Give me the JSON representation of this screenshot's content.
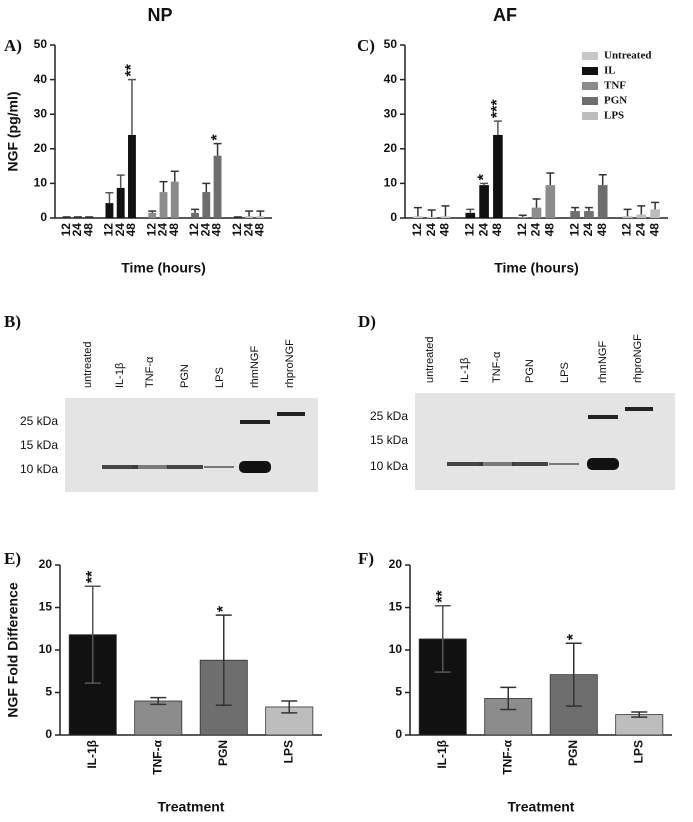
{
  "chart_data": [
    {
      "type": "bar",
      "panel": "A)",
      "title": "NP",
      "ylabel": "NGF (pg/ml)",
      "xlabel": "Time (hours)",
      "categories": [
        "12",
        "24",
        "48",
        "12",
        "24",
        "48",
        "12",
        "24",
        "48",
        "12",
        "24",
        "48",
        "12",
        "24",
        "48"
      ],
      "ylim": [
        0,
        50
      ],
      "yticks": [
        0,
        10,
        20,
        30,
        40,
        50
      ],
      "error_direction": "up",
      "legend": false,
      "series": [
        {
          "name": "Untreated",
          "color": "#c8c8c8",
          "values": [
            0,
            0,
            0,
            null,
            null,
            null,
            null,
            null,
            null,
            null,
            null,
            null,
            null,
            null,
            null
          ],
          "errors": [
            0.3,
            0.3,
            0.3,
            null,
            null,
            null,
            null,
            null,
            null,
            null,
            null,
            null,
            null,
            null,
            null
          ]
        },
        {
          "name": "IL",
          "color": "#111111",
          "values": [
            null,
            null,
            null,
            4.3,
            8.7,
            24,
            null,
            null,
            null,
            null,
            null,
            null,
            null,
            null,
            null
          ],
          "errors": [
            null,
            null,
            null,
            3,
            3.7,
            16,
            null,
            null,
            null,
            null,
            null,
            null,
            null,
            null,
            null
          ],
          "annotations": [
            null,
            null,
            null,
            null,
            null,
            "**",
            null,
            null,
            null,
            null,
            null,
            null,
            null,
            null,
            null
          ]
        },
        {
          "name": "TNF",
          "color": "#8c8c8c",
          "values": [
            null,
            null,
            null,
            null,
            null,
            null,
            1.5,
            7.5,
            10.5,
            null,
            null,
            null,
            null,
            null,
            null
          ],
          "errors": [
            null,
            null,
            null,
            null,
            null,
            null,
            0.5,
            3,
            3,
            null,
            null,
            null,
            null,
            null,
            null
          ]
        },
        {
          "name": "PGN",
          "color": "#6e6e6e",
          "values": [
            null,
            null,
            null,
            null,
            null,
            null,
            null,
            null,
            null,
            1.5,
            7.5,
            18,
            null,
            null,
            null
          ],
          "errors": [
            null,
            null,
            null,
            null,
            null,
            null,
            null,
            null,
            null,
            1,
            2.5,
            3.5,
            null,
            null,
            null
          ],
          "annotations": [
            null,
            null,
            null,
            null,
            null,
            null,
            null,
            null,
            null,
            null,
            null,
            "*",
            null,
            null,
            null
          ]
        },
        {
          "name": "LPS",
          "color": "#bdbdbd",
          "values": [
            null,
            null,
            null,
            null,
            null,
            null,
            null,
            null,
            null,
            null,
            null,
            null,
            0,
            0.5,
            0.5
          ],
          "errors": [
            null,
            null,
            null,
            null,
            null,
            null,
            null,
            null,
            null,
            null,
            null,
            null,
            0.3,
            1.5,
            1.5
          ]
        }
      ]
    },
    {
      "type": "bar",
      "panel": "C)",
      "title": "AF",
      "xlabel": "Time (hours)",
      "categories": [
        "12",
        "24",
        "48",
        "12",
        "24",
        "48",
        "12",
        "24",
        "48",
        "12",
        "24",
        "48",
        "12",
        "24",
        "48"
      ],
      "ylim": [
        0,
        50
      ],
      "yticks": [
        0,
        10,
        20,
        30,
        40,
        50
      ],
      "error_direction": "up",
      "legend": "upper right",
      "series": [
        {
          "name": "Untreated",
          "color": "#c8c8c8",
          "values": [
            0.5,
            0.3,
            0.5,
            null,
            null,
            null,
            null,
            null,
            null,
            null,
            null,
            null,
            null,
            null,
            null
          ],
          "errors": [
            2.5,
            2,
            3,
            null,
            null,
            null,
            null,
            null,
            null,
            null,
            null,
            null,
            null,
            null,
            null
          ]
        },
        {
          "name": "IL",
          "color": "#111111",
          "values": [
            null,
            null,
            null,
            1.5,
            9.5,
            24,
            null,
            null,
            null,
            null,
            null,
            null,
            null,
            null,
            null
          ],
          "errors": [
            null,
            null,
            null,
            1,
            0.5,
            4,
            null,
            null,
            null,
            null,
            null,
            null,
            null,
            null,
            null
          ],
          "annotations": [
            null,
            null,
            null,
            null,
            "*",
            "***",
            null,
            null,
            null,
            null,
            null,
            null,
            null,
            null,
            null
          ]
        },
        {
          "name": "TNF",
          "color": "#8c8c8c",
          "values": [
            null,
            null,
            null,
            null,
            null,
            null,
            0.3,
            3,
            9.5,
            null,
            null,
            null,
            null,
            null,
            null
          ],
          "errors": [
            null,
            null,
            null,
            null,
            null,
            null,
            0.5,
            2.5,
            3.5,
            null,
            null,
            null,
            null,
            null,
            null
          ]
        },
        {
          "name": "PGN",
          "color": "#6e6e6e",
          "values": [
            null,
            null,
            null,
            null,
            null,
            null,
            null,
            null,
            null,
            2,
            2,
            9.5,
            null,
            null,
            null
          ],
          "errors": [
            null,
            null,
            null,
            null,
            null,
            null,
            null,
            null,
            null,
            1,
            1,
            3,
            null,
            null,
            null
          ]
        },
        {
          "name": "LPS",
          "color": "#bdbdbd",
          "values": [
            null,
            null,
            null,
            null,
            null,
            null,
            null,
            null,
            null,
            null,
            null,
            null,
            0.5,
            1,
            2.5
          ],
          "errors": [
            null,
            null,
            null,
            null,
            null,
            null,
            null,
            null,
            null,
            null,
            null,
            null,
            2,
            2.5,
            2
          ]
        }
      ]
    },
    {
      "type": "bar",
      "panel": "E)",
      "ylabel": "NGF Fold Difference",
      "xlabel": "Treatment",
      "categories": [
        "IL-1β",
        "TNF-α",
        "PGN",
        "LPS"
      ],
      "values": [
        11.8,
        4.0,
        8.8,
        3.3
      ],
      "errors": [
        5.7,
        0.4,
        5.3,
        0.7
      ],
      "annotations": [
        "**",
        null,
        "*",
        null
      ],
      "colors": [
        "#111111",
        "#8c8c8c",
        "#6e6e6e",
        "#bdbdbd"
      ],
      "ylim": [
        0,
        20
      ],
      "yticks": [
        0,
        5,
        10,
        15,
        20
      ],
      "error_direction": "both"
    },
    {
      "type": "bar",
      "panel": "F)",
      "xlabel": "Treatment",
      "categories": [
        "IL-1β",
        "TNF-α",
        "PGN",
        "LPS"
      ],
      "values": [
        11.3,
        4.3,
        7.1,
        2.4
      ],
      "errors": [
        3.9,
        1.3,
        3.7,
        0.3
      ],
      "annotations": [
        "**",
        null,
        "*",
        null
      ],
      "colors": [
        "#111111",
        "#8c8c8c",
        "#6e6e6e",
        "#bdbdbd"
      ],
      "ylim": [
        0,
        20
      ],
      "yticks": [
        0,
        5,
        10,
        15,
        20
      ],
      "error_direction": "both"
    }
  ],
  "blots": [
    {
      "panel": "B)",
      "lanes": [
        "untreated",
        "IL-1β",
        "TNF-α",
        "PGN",
        "LPS",
        "rhmNGF",
        "rhproNGF"
      ],
      "markers": [
        "25 kDa",
        "15 kDa",
        "10 kDa"
      ]
    },
    {
      "panel": "D)",
      "lanes": [
        "untreated",
        "IL-1β",
        "TNF-α",
        "PGN",
        "LPS",
        "rhmNGF",
        "rhproNGF"
      ],
      "markers": [
        "25 kDa",
        "15 kDa",
        "10 kDa"
      ]
    }
  ]
}
